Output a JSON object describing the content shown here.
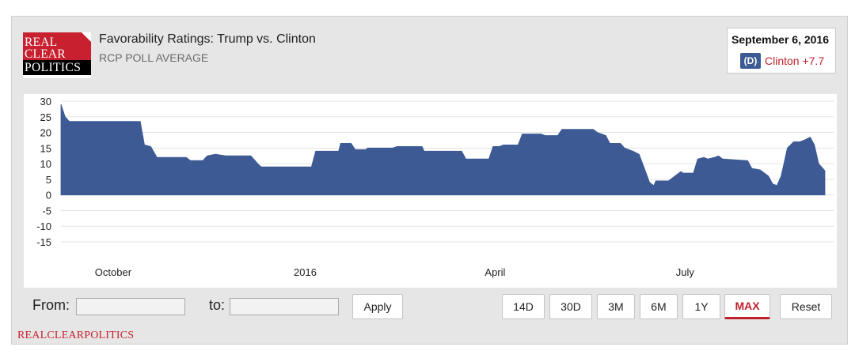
{
  "logo": {
    "line1": "REAL",
    "line2": "CLEAR",
    "line3": "POLITICS"
  },
  "header": {
    "title": "Favorability Ratings: Trump vs. Clinton",
    "subtitle": "RCP POLL AVERAGE"
  },
  "latest": {
    "date": "September 6, 2016",
    "party": "(D)",
    "spread": "Clinton +7.7",
    "party_color": "#3d5a94",
    "spread_color": "#c0202a"
  },
  "controls": {
    "from_label": "From:",
    "from_value": "",
    "to_label": "to:",
    "to_value": "",
    "apply_label": "Apply",
    "ranges": [
      "14D",
      "30D",
      "3M",
      "6M",
      "1Y",
      "MAX"
    ],
    "active_range": "MAX",
    "reset_label": "Reset"
  },
  "footer": {
    "brand": "REALCLEARPOLITICS"
  },
  "chart_data": {
    "type": "area",
    "fill_color": "#3d5a94",
    "grid": true,
    "ylim": [
      -15,
      30
    ],
    "yticks": [
      30,
      25,
      20,
      15,
      10,
      5,
      0,
      -5,
      -10,
      -15
    ],
    "xlim": [
      "2015-09-06",
      "2016-09-06"
    ],
    "xticks": [
      {
        "label": "October",
        "date": "2015-10-01"
      },
      {
        "label": "2016",
        "date": "2016-01-01"
      },
      {
        "label": "April",
        "date": "2016-04-01"
      },
      {
        "label": "July",
        "date": "2016-07-01"
      }
    ],
    "series": [
      {
        "points": [
          [
            "2015-09-06",
            29.0
          ],
          [
            "2015-09-08",
            25.0
          ],
          [
            "2015-09-10",
            23.5
          ],
          [
            "2015-10-14",
            23.5
          ],
          [
            "2015-10-16",
            16.0
          ],
          [
            "2015-10-19",
            15.5
          ],
          [
            "2015-10-22",
            12.0
          ],
          [
            "2015-11-05",
            12.0
          ],
          [
            "2015-11-07",
            11.0
          ],
          [
            "2015-11-13",
            11.0
          ],
          [
            "2015-11-15",
            12.5
          ],
          [
            "2015-11-19",
            13.0
          ],
          [
            "2015-11-24",
            12.5
          ],
          [
            "2015-12-06",
            12.5
          ],
          [
            "2015-12-10",
            9.5
          ],
          [
            "2015-12-11",
            9.0
          ],
          [
            "2016-01-04",
            9.0
          ],
          [
            "2016-01-06",
            14.0
          ],
          [
            "2016-01-17",
            14.0
          ],
          [
            "2016-01-18",
            16.5
          ],
          [
            "2016-01-23",
            16.5
          ],
          [
            "2016-01-25",
            14.5
          ],
          [
            "2016-01-30",
            14.5
          ],
          [
            "2016-01-31",
            15.0
          ],
          [
            "2016-02-12",
            15.0
          ],
          [
            "2016-02-14",
            15.5
          ],
          [
            "2016-02-26",
            15.5
          ],
          [
            "2016-02-27",
            14.0
          ],
          [
            "2016-03-16",
            14.0
          ],
          [
            "2016-03-18",
            11.5
          ],
          [
            "2016-03-29",
            11.5
          ],
          [
            "2016-03-31",
            15.5
          ],
          [
            "2016-04-03",
            15.5
          ],
          [
            "2016-04-05",
            16.0
          ],
          [
            "2016-04-12",
            16.0
          ],
          [
            "2016-04-14",
            19.5
          ],
          [
            "2016-04-23",
            19.5
          ],
          [
            "2016-04-25",
            19.0
          ],
          [
            "2016-05-01",
            19.0
          ],
          [
            "2016-05-03",
            21.0
          ],
          [
            "2016-05-18",
            21.0
          ],
          [
            "2016-05-20",
            20.0
          ],
          [
            "2016-05-24",
            19.0
          ],
          [
            "2016-05-26",
            16.5
          ],
          [
            "2016-05-31",
            16.5
          ],
          [
            "2016-06-02",
            15.0
          ],
          [
            "2016-06-06",
            14.0
          ],
          [
            "2016-06-09",
            13.0
          ],
          [
            "2016-06-11",
            9.5
          ],
          [
            "2016-06-14",
            4.0
          ],
          [
            "2016-06-16",
            3.0
          ],
          [
            "2016-06-17",
            4.5
          ],
          [
            "2016-06-23",
            4.5
          ],
          [
            "2016-06-26",
            6.0
          ],
          [
            "2016-06-29",
            7.5
          ],
          [
            "2016-06-30",
            7.0
          ],
          [
            "2016-07-05",
            7.0
          ],
          [
            "2016-07-07",
            11.5
          ],
          [
            "2016-07-10",
            12.0
          ],
          [
            "2016-07-12",
            11.5
          ],
          [
            "2016-07-15",
            12.0
          ],
          [
            "2016-07-17",
            12.5
          ],
          [
            "2016-07-19",
            11.5
          ],
          [
            "2016-07-31",
            11.0
          ],
          [
            "2016-08-02",
            8.5
          ],
          [
            "2016-08-06",
            8.0
          ],
          [
            "2016-08-10",
            6.0
          ],
          [
            "2016-08-12",
            3.5
          ],
          [
            "2016-08-14",
            3.0
          ],
          [
            "2016-08-16",
            6.0
          ],
          [
            "2016-08-17",
            9.0
          ],
          [
            "2016-08-19",
            15.0
          ],
          [
            "2016-08-22",
            17.0
          ],
          [
            "2016-08-25",
            17.0
          ],
          [
            "2016-08-27",
            17.5
          ],
          [
            "2016-08-30",
            18.5
          ],
          [
            "2016-09-01",
            16.0
          ],
          [
            "2016-09-03",
            10.0
          ],
          [
            "2016-09-05",
            8.5
          ],
          [
            "2016-09-06",
            7.7
          ]
        ]
      }
    ]
  }
}
